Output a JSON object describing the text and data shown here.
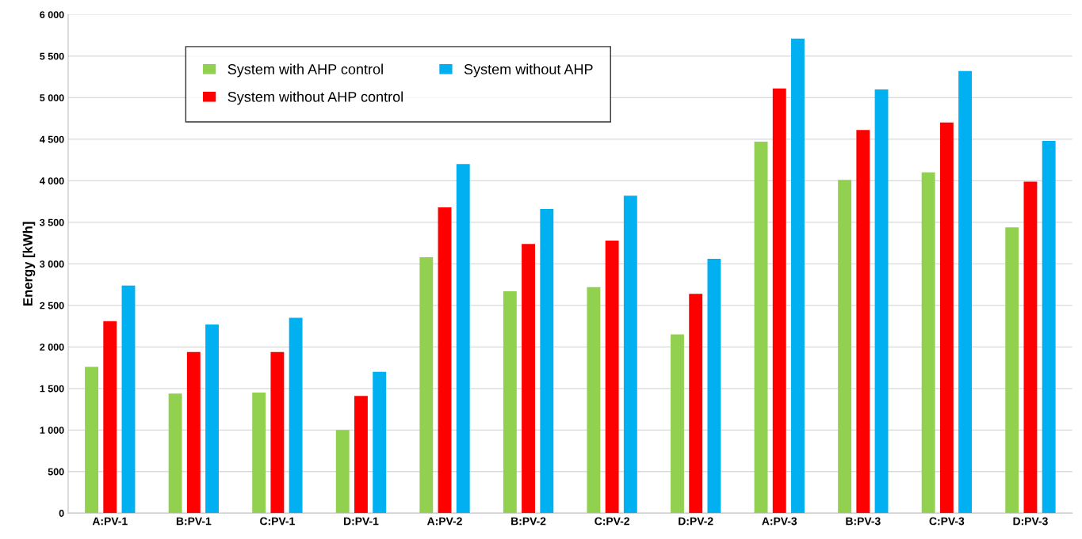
{
  "chart_data": {
    "type": "bar",
    "ylabel": "Energy [kWh]",
    "categories": [
      "A:PV-1",
      "B:PV-1",
      "C:PV-1",
      "D:PV-1",
      "A:PV-2",
      "B:PV-2",
      "C:PV-2",
      "D:PV-2",
      "A:PV-3",
      "B:PV-3",
      "C:PV-3",
      "D:PV-3"
    ],
    "series": [
      {
        "name": "System with AHP control",
        "color": "#92d050",
        "values": [
          1760,
          1440,
          1450,
          1000,
          3080,
          2670,
          2720,
          2150,
          4470,
          4010,
          4100,
          3440
        ]
      },
      {
        "name": "System without AHP control",
        "color": "#ff0000",
        "values": [
          2310,
          1940,
          1940,
          1410,
          3680,
          3240,
          3280,
          2640,
          5110,
          4610,
          4700,
          3990
        ]
      },
      {
        "name": "System without AHP",
        "color": "#00b0f0",
        "values": [
          2740,
          2270,
          2350,
          1700,
          4200,
          3660,
          3820,
          3060,
          5710,
          5100,
          5320,
          4480
        ]
      }
    ],
    "ylim": [
      0,
      6000
    ],
    "yticks": [
      0,
      500,
      {
        "value": 1000,
        "label": "1 000"
      },
      {
        "value": 1500,
        "label": "1 500"
      },
      {
        "value": 2000,
        "label": "2 000"
      },
      {
        "value": 2500,
        "label": "2 500"
      },
      {
        "value": 3000,
        "label": "3 000"
      },
      {
        "value": 3500,
        "label": "3 500"
      },
      {
        "value": 4000,
        "label": "4 000"
      },
      {
        "value": 4500,
        "label": "4 500"
      },
      {
        "value": 5000,
        "label": "5 000"
      },
      {
        "value": 5500,
        "label": "5 500"
      },
      {
        "value": 6000,
        "label": "6 000"
      }
    ],
    "grid": "y",
    "legend": "top left"
  }
}
